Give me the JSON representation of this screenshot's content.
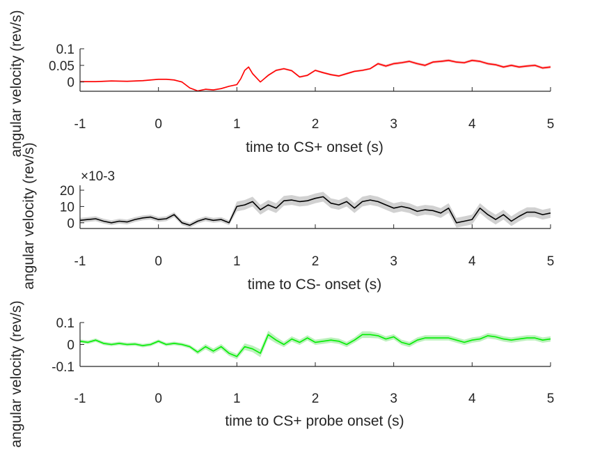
{
  "figure": {
    "panels": [
      {
        "xlabel": "time to CS+ onset (s)",
        "ylabel": "angular velocity (rev/s)",
        "yticks": [
          "-1",
          "0",
          "1",
          "2",
          "3",
          "4",
          "5"
        ],
        "y_tick_labels": [
          "0.1",
          "0.05",
          "0"
        ],
        "y_exponent_label": ""
      },
      {
        "xlabel": "time to CS- onset (s)",
        "ylabel": "angular velocity (rev/s)",
        "y_tick_labels": [
          "20",
          "10",
          "0"
        ],
        "y_exponent_label": "×10-3"
      },
      {
        "xlabel": "time to CS+ probe onset (s)",
        "ylabel": "angular velocity (rev/s)",
        "y_tick_labels": [
          "0.1",
          "0",
          "-0.1"
        ],
        "y_exponent_label": ""
      }
    ],
    "x_tick_labels": [
      "-1",
      "0",
      "1",
      "2",
      "3",
      "4",
      "5"
    ]
  },
  "chart_data": [
    {
      "type": "line",
      "title": "",
      "xlabel": "time to CS+ onset (s)",
      "ylabel": "angular velocity (rev/s)",
      "xlim": [
        -1,
        5
      ],
      "ylim": [
        -0.028,
        0.1
      ],
      "yticks": [
        0,
        0.05,
        0.1
      ],
      "color": "#ff0000",
      "band_color": "#f4b6b6",
      "grid": false,
      "x": [
        -1.0,
        -0.8,
        -0.6,
        -0.4,
        -0.2,
        0.0,
        0.1,
        0.2,
        0.3,
        0.4,
        0.5,
        0.6,
        0.7,
        0.8,
        0.9,
        1.0,
        1.05,
        1.1,
        1.15,
        1.2,
        1.3,
        1.4,
        1.5,
        1.6,
        1.7,
        1.8,
        1.9,
        2.0,
        2.1,
        2.2,
        2.3,
        2.4,
        2.5,
        2.6,
        2.7,
        2.8,
        2.9,
        3.0,
        3.1,
        3.2,
        3.3,
        3.4,
        3.5,
        3.6,
        3.7,
        3.8,
        3.9,
        4.0,
        4.1,
        4.2,
        4.3,
        4.4,
        4.5,
        4.6,
        4.7,
        4.8,
        4.9,
        5.0
      ],
      "y": [
        0.001,
        0.001,
        0.003,
        0.002,
        0.004,
        0.008,
        0.008,
        0.006,
        0.0,
        -0.018,
        -0.027,
        -0.022,
        -0.024,
        -0.02,
        -0.013,
        -0.008,
        0.01,
        0.035,
        0.045,
        0.025,
        0.0,
        0.02,
        0.035,
        0.04,
        0.034,
        0.015,
        0.02,
        0.035,
        0.028,
        0.022,
        0.018,
        0.025,
        0.032,
        0.035,
        0.04,
        0.055,
        0.048,
        0.055,
        0.058,
        0.062,
        0.055,
        0.05,
        0.06,
        0.062,
        0.065,
        0.06,
        0.058,
        0.065,
        0.062,
        0.055,
        0.052,
        0.045,
        0.05,
        0.045,
        0.048,
        0.05,
        0.042,
        0.045
      ],
      "band": [
        0.002,
        0.002,
        0.002,
        0.002,
        0.002,
        0.002,
        0.002,
        0.002,
        0.002,
        0.002,
        0.002,
        0.002,
        0.002,
        0.002,
        0.002,
        0.002,
        0.002,
        0.002,
        0.003,
        0.003,
        0.002,
        0.003,
        0.003,
        0.003,
        0.003,
        0.003,
        0.003,
        0.003,
        0.003,
        0.003,
        0.003,
        0.003,
        0.003,
        0.003,
        0.003,
        0.004,
        0.004,
        0.004,
        0.004,
        0.004,
        0.004,
        0.004,
        0.004,
        0.004,
        0.004,
        0.004,
        0.004,
        0.004,
        0.004,
        0.004,
        0.004,
        0.004,
        0.004,
        0.004,
        0.004,
        0.004,
        0.004,
        0.004
      ]
    },
    {
      "type": "line",
      "title": "",
      "xlabel": "time to CS- onset (s)",
      "ylabel": "angular velocity (rev/s)",
      "xlim": [
        -1,
        5
      ],
      "ylim": [
        -0.0035,
        0.023
      ],
      "yticks": [
        0,
        0.01,
        0.02
      ],
      "y_scale_exponent": -3,
      "color": "#000000",
      "band_color": "#cccccc",
      "grid": false,
      "x": [
        -1.0,
        -0.9,
        -0.8,
        -0.7,
        -0.6,
        -0.5,
        -0.4,
        -0.3,
        -0.2,
        -0.1,
        0.0,
        0.1,
        0.2,
        0.3,
        0.4,
        0.5,
        0.6,
        0.7,
        0.8,
        0.9,
        1.0,
        1.1,
        1.2,
        1.3,
        1.4,
        1.5,
        1.6,
        1.7,
        1.8,
        1.9,
        2.0,
        2.1,
        2.2,
        2.3,
        2.4,
        2.5,
        2.6,
        2.7,
        2.8,
        2.9,
        3.0,
        3.1,
        3.2,
        3.3,
        3.4,
        3.5,
        3.6,
        3.7,
        3.8,
        3.9,
        4.0,
        4.1,
        4.2,
        4.3,
        4.4,
        4.5,
        4.6,
        4.7,
        4.8,
        4.9,
        5.0
      ],
      "y": [
        0.0015,
        0.002,
        0.0025,
        0.001,
        0.0,
        0.001,
        0.0005,
        0.002,
        0.003,
        0.0035,
        0.002,
        0.0025,
        0.005,
        0.0,
        -0.0015,
        0.001,
        0.0025,
        0.0015,
        0.002,
        0.0,
        0.01,
        0.011,
        0.013,
        0.008,
        0.011,
        0.009,
        0.0135,
        0.014,
        0.013,
        0.0135,
        0.015,
        0.016,
        0.012,
        0.011,
        0.013,
        0.009,
        0.013,
        0.014,
        0.013,
        0.011,
        0.009,
        0.01,
        0.009,
        0.007,
        0.008,
        0.0075,
        0.006,
        0.009,
        0.0,
        0.001,
        0.002,
        0.009,
        0.005,
        0.002,
        0.005,
        0.001,
        0.004,
        0.0065,
        0.0065,
        0.005,
        0.006
      ],
      "band": [
        0.0015,
        0.0015,
        0.0015,
        0.0015,
        0.0015,
        0.0015,
        0.0015,
        0.0015,
        0.0015,
        0.0015,
        0.0015,
        0.0015,
        0.0015,
        0.0015,
        0.0015,
        0.0015,
        0.0015,
        0.0015,
        0.0015,
        0.0015,
        0.003,
        0.003,
        0.003,
        0.003,
        0.003,
        0.003,
        0.003,
        0.003,
        0.003,
        0.003,
        0.003,
        0.003,
        0.003,
        0.003,
        0.003,
        0.003,
        0.003,
        0.003,
        0.003,
        0.003,
        0.003,
        0.003,
        0.003,
        0.003,
        0.003,
        0.003,
        0.003,
        0.003,
        0.003,
        0.003,
        0.003,
        0.003,
        0.003,
        0.003,
        0.003,
        0.003,
        0.003,
        0.003,
        0.003,
        0.003,
        0.003
      ]
    },
    {
      "type": "line",
      "title": "",
      "xlabel": "time to CS+ probe onset (s)",
      "ylabel": "angular velocity (rev/s)",
      "xlim": [
        -1,
        5
      ],
      "ylim": [
        -0.1,
        0.1
      ],
      "yticks": [
        -0.1,
        0,
        0.1
      ],
      "color": "#00ee00",
      "band_color": "#b5f0b5",
      "grid": false,
      "x": [
        -1.0,
        -0.9,
        -0.8,
        -0.7,
        -0.6,
        -0.5,
        -0.4,
        -0.3,
        -0.2,
        -0.1,
        0.0,
        0.1,
        0.2,
        0.3,
        0.4,
        0.5,
        0.6,
        0.7,
        0.8,
        0.9,
        1.0,
        1.1,
        1.2,
        1.3,
        1.4,
        1.5,
        1.6,
        1.7,
        1.8,
        1.9,
        2.0,
        2.1,
        2.2,
        2.3,
        2.4,
        2.5,
        2.6,
        2.7,
        2.8,
        2.9,
        3.0,
        3.1,
        3.2,
        3.3,
        3.4,
        3.5,
        3.6,
        3.7,
        3.8,
        3.9,
        4.0,
        4.1,
        4.2,
        4.3,
        4.4,
        4.5,
        4.6,
        4.7,
        4.8,
        4.9,
        5.0
      ],
      "y": [
        0.015,
        0.01,
        0.02,
        0.005,
        0.0,
        0.005,
        0.0,
        0.002,
        -0.005,
        0.0,
        0.015,
        0.0,
        0.005,
        0.0,
        -0.01,
        -0.035,
        -0.01,
        -0.03,
        -0.01,
        -0.04,
        -0.055,
        -0.01,
        -0.02,
        -0.04,
        0.045,
        0.02,
        0.0,
        0.025,
        0.01,
        0.03,
        0.01,
        0.015,
        0.02,
        0.015,
        0.0,
        0.02,
        0.045,
        0.045,
        0.04,
        0.025,
        0.035,
        0.01,
        0.0,
        0.02,
        0.03,
        0.03,
        0.03,
        0.03,
        0.02,
        0.01,
        0.02,
        0.025,
        0.04,
        0.035,
        0.025,
        0.02,
        0.025,
        0.03,
        0.03,
        0.02,
        0.025
      ],
      "band": [
        0.008,
        0.008,
        0.008,
        0.008,
        0.008,
        0.008,
        0.008,
        0.008,
        0.008,
        0.008,
        0.008,
        0.008,
        0.008,
        0.008,
        0.008,
        0.01,
        0.012,
        0.012,
        0.012,
        0.012,
        0.012,
        0.015,
        0.015,
        0.018,
        0.018,
        0.015,
        0.012,
        0.012,
        0.012,
        0.012,
        0.012,
        0.012,
        0.012,
        0.012,
        0.012,
        0.012,
        0.015,
        0.015,
        0.012,
        0.012,
        0.012,
        0.012,
        0.012,
        0.012,
        0.012,
        0.012,
        0.012,
        0.012,
        0.012,
        0.012,
        0.012,
        0.012,
        0.012,
        0.012,
        0.012,
        0.012,
        0.012,
        0.012,
        0.012,
        0.012,
        0.012
      ]
    }
  ]
}
